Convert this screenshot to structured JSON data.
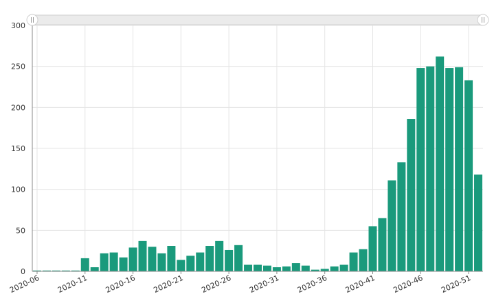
{
  "chart_data": {
    "type": "bar",
    "title": "",
    "xlabel": "",
    "ylabel": "",
    "ylim": [
      0,
      300
    ],
    "yticks": [
      0,
      50,
      100,
      150,
      200,
      250,
      300
    ],
    "grid": true,
    "legend": "none",
    "colors": {
      "bar": "#1a9a7c",
      "grid": "#e4e4e4",
      "axis": "#888888",
      "zoom_track": "#ebebeb",
      "zoom_border": "#cfcfcf"
    },
    "categories": [
      "2020-06",
      "2020-07",
      "2020-08",
      "2020-09",
      "2020-10",
      "2020-11",
      "2020-12",
      "2020-13",
      "2020-14",
      "2020-15",
      "2020-16",
      "2020-17",
      "2020-18",
      "2020-19",
      "2020-20",
      "2020-21",
      "2020-22",
      "2020-23",
      "2020-24",
      "2020-25",
      "2020-26",
      "2020-27",
      "2020-28",
      "2020-29",
      "2020-30",
      "2020-31",
      "2020-32",
      "2020-33",
      "2020-34",
      "2020-35",
      "2020-36",
      "2020-37",
      "2020-38",
      "2020-39",
      "2020-40",
      "2020-41",
      "2020-42",
      "2020-43",
      "2020-44",
      "2020-45",
      "2020-46",
      "2020-47",
      "2020-48",
      "2020-49",
      "2020-50",
      "2020-51",
      "2020-52"
    ],
    "x_tick_labels": [
      "2020-06",
      "2020-11",
      "2020-16",
      "2020-21",
      "2020-26",
      "2020-31",
      "2020-36",
      "2020-41",
      "2020-46",
      "2020-51"
    ],
    "values": [
      1,
      1,
      1,
      1,
      1,
      16,
      5,
      22,
      23,
      17,
      29,
      37,
      30,
      22,
      31,
      14,
      19,
      23,
      31,
      37,
      26,
      32,
      8,
      8,
      7,
      5,
      6,
      10,
      7,
      2,
      3,
      6,
      8,
      23,
      27,
      55,
      65,
      111,
      133,
      186,
      248,
      250,
      262,
      248,
      249,
      233,
      118
    ]
  }
}
